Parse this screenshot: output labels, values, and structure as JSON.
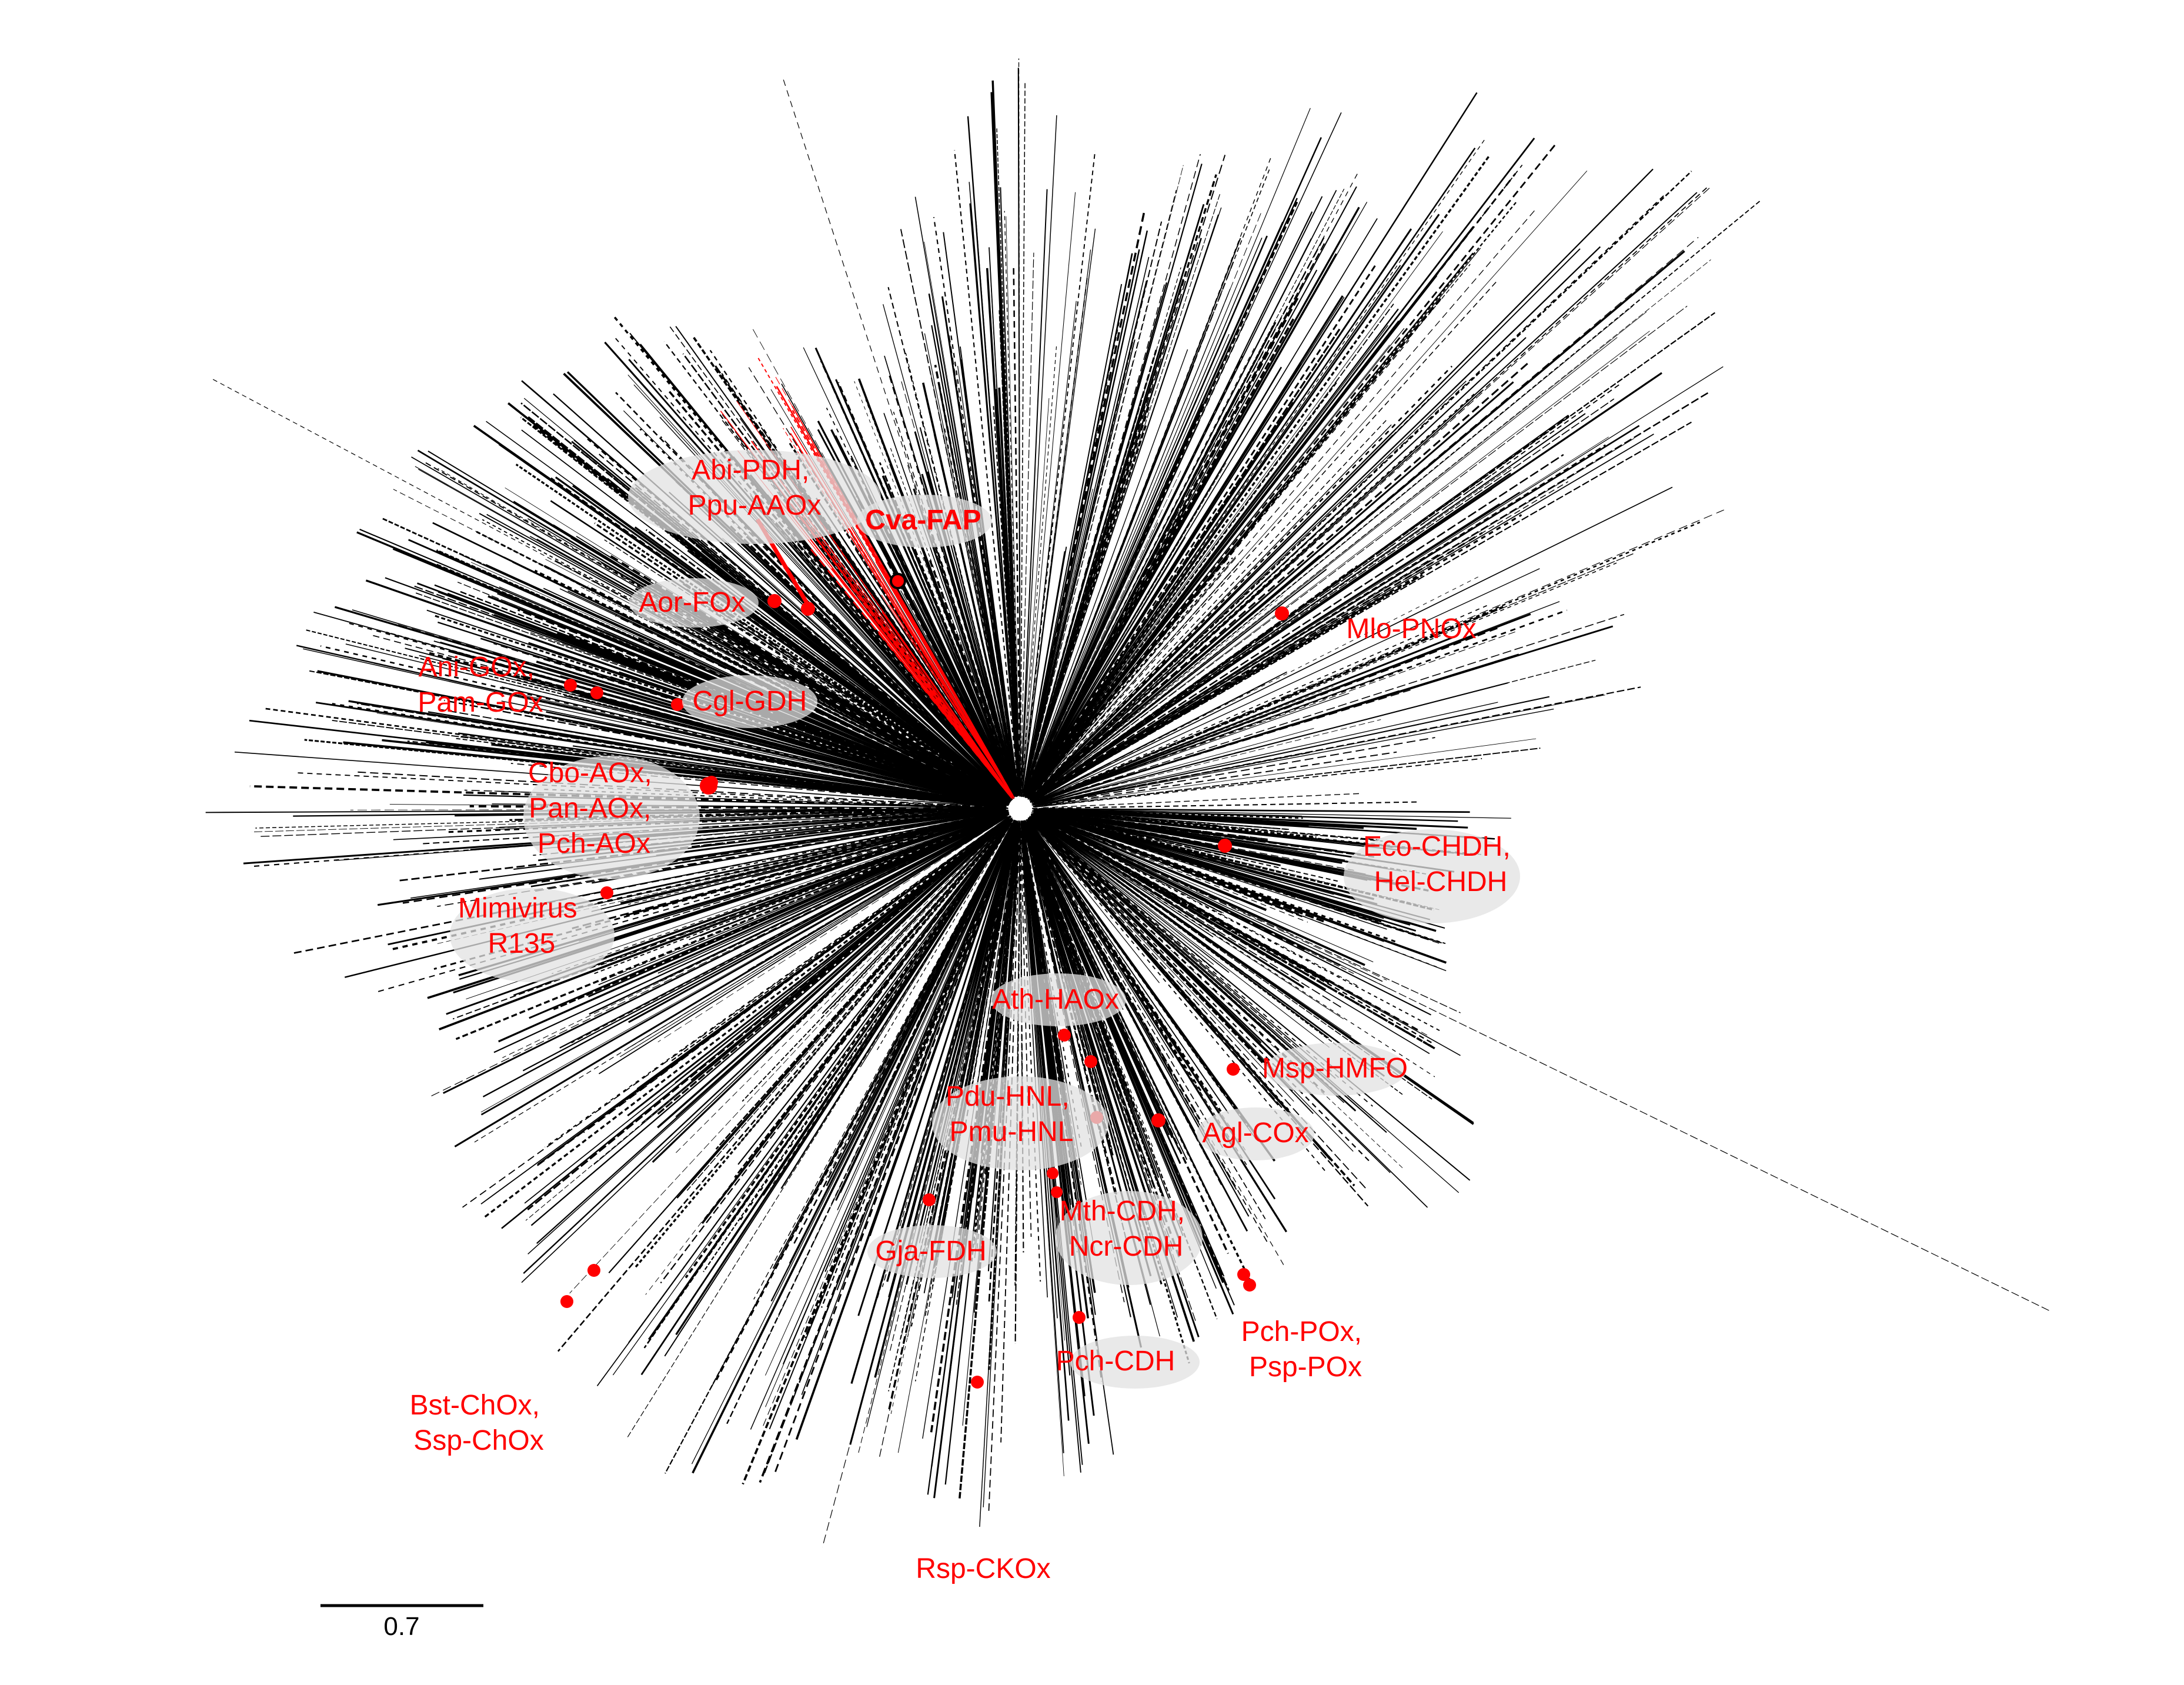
{
  "colors": {
    "branch": "#000000",
    "highlight": "#ff0000",
    "label_halo": "#e2e2e2"
  },
  "scale_bar": {
    "label": "0.7"
  },
  "labels": [
    {
      "id": "abi-pdh",
      "lines": [
        "Abi-PDH,",
        "Ppu-AAOx"
      ]
    },
    {
      "id": "cva-fap",
      "lines": [
        "Cva-FAP"
      ],
      "bold": true
    },
    {
      "id": "aor-fox",
      "lines": [
        "Aor-FOx"
      ]
    },
    {
      "id": "ani-gox",
      "lines": [
        "Ani-GOx,",
        "Pam-GOx"
      ]
    },
    {
      "id": "cgl-gdh",
      "lines": [
        "Cgl-GDH"
      ]
    },
    {
      "id": "cbo-aox",
      "lines": [
        "Cbo-AOx,",
        "Pan-AOx,",
        "Pch-AOx"
      ]
    },
    {
      "id": "mimivirus",
      "lines": [
        "Mimivirus",
        "R135"
      ]
    },
    {
      "id": "mlo-pnox",
      "lines": [
        "Mlo-PNOx"
      ]
    },
    {
      "id": "eco-chdh",
      "lines": [
        "Eco-CHDH,",
        "Hel-CHDH"
      ]
    },
    {
      "id": "ath-haox",
      "lines": [
        "Ath-HAOx"
      ]
    },
    {
      "id": "msp-hmfo",
      "lines": [
        "Msp-HMFO"
      ]
    },
    {
      "id": "pdu-hnl",
      "lines": [
        "Pdu-HNL,",
        "Pmu-HNL"
      ]
    },
    {
      "id": "agl-cox",
      "lines": [
        "Agl-COx"
      ]
    },
    {
      "id": "mth-cdh",
      "lines": [
        "Mth-CDH,",
        "Ncr-CDH"
      ]
    },
    {
      "id": "gja-fdh",
      "lines": [
        "Gja-FDH"
      ]
    },
    {
      "id": "pch-pox",
      "lines": [
        "Pch-POx,",
        "Psp-POx"
      ]
    },
    {
      "id": "pch-cdh",
      "lines": [
        "Pch-CDH"
      ]
    },
    {
      "id": "bst-chox",
      "lines": [
        "Bst-ChOx,",
        "Ssp-ChOx"
      ]
    },
    {
      "id": "rsp-ckox",
      "lines": [
        "Rsp-CKOx"
      ]
    }
  ]
}
